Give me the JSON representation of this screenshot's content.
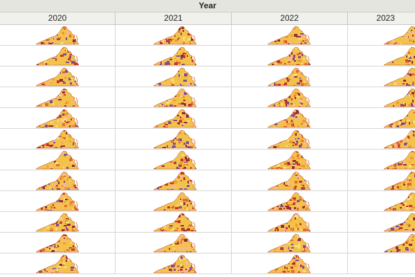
{
  "header": {
    "title": "Year",
    "columns": [
      "2020",
      "2021",
      "2022",
      "2023"
    ]
  },
  "grid": {
    "row_count": 12,
    "map_icon": "virginia-county-map-thumbnail",
    "empty_cells": [
      {
        "row": 11,
        "col": 3
      }
    ]
  },
  "colors": {
    "map_palette": [
      "#f6e27a",
      "#f3c24a",
      "#ee9a35",
      "#e46a2e",
      "#c8332c",
      "#8f2a3a",
      "#7a4c9a",
      "#f8b6a0"
    ],
    "header_bg": "#e5e5df",
    "grid_line": "#d6d6d6"
  }
}
